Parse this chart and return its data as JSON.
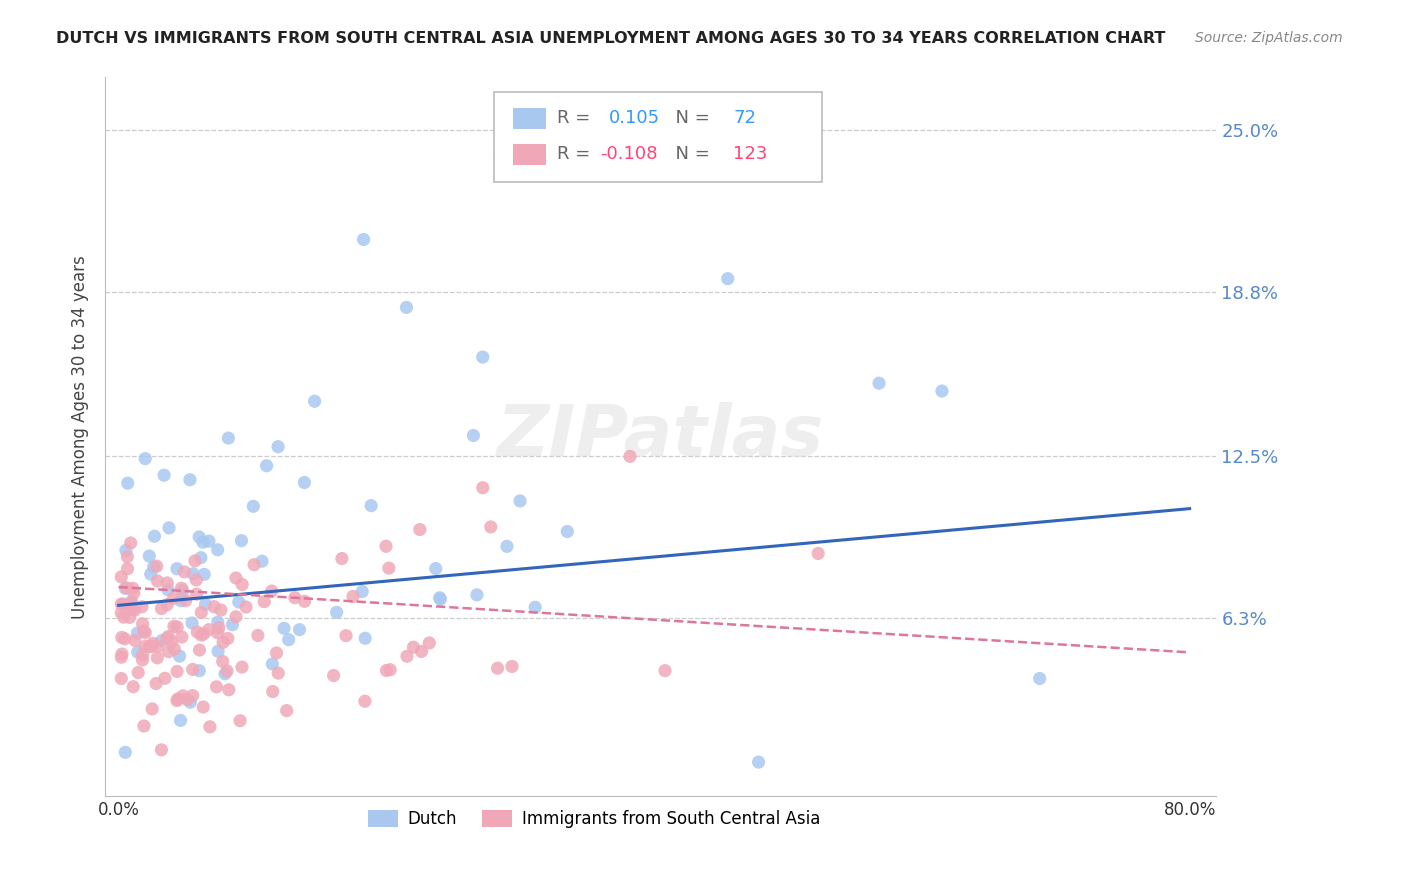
{
  "title": "DUTCH VS IMMIGRANTS FROM SOUTH CENTRAL ASIA UNEMPLOYMENT AMONG AGES 30 TO 34 YEARS CORRELATION CHART",
  "source": "Source: ZipAtlas.com",
  "ylabel": "Unemployment Among Ages 30 to 34 years",
  "xlim": [
    0.0,
    0.8
  ],
  "ylim": [
    0.0,
    0.265
  ],
  "ytick_vals": [
    0.0,
    0.063,
    0.125,
    0.188,
    0.25
  ],
  "right_ytick_labels": [
    "6.3%",
    "12.5%",
    "18.8%",
    "25.0%"
  ],
  "dutch_color": "#a8c8f0",
  "immigrant_color": "#f0a8b8",
  "dutch_line_color": "#3366bb",
  "immigrant_line_color": "#dd7799",
  "watermark": "ZIPatlas",
  "background_color": "#ffffff",
  "dutch_R": 0.105,
  "dutch_N": 72,
  "immigrant_R": -0.108,
  "immigrant_N": 123,
  "dutch_trend_x0": 0.0,
  "dutch_trend_y0": 0.068,
  "dutch_trend_x1": 0.8,
  "dutch_trend_y1": 0.105,
  "imm_trend_x0": 0.0,
  "imm_trend_y0": 0.075,
  "imm_trend_x1": 0.8,
  "imm_trend_y1": 0.05,
  "r_color_blue": "#3399ff",
  "r_color_pink": "#ff4477",
  "n_color_blue": "#3399ff",
  "n_color_pink": "#ff4477",
  "legend_gray": "#666666"
}
